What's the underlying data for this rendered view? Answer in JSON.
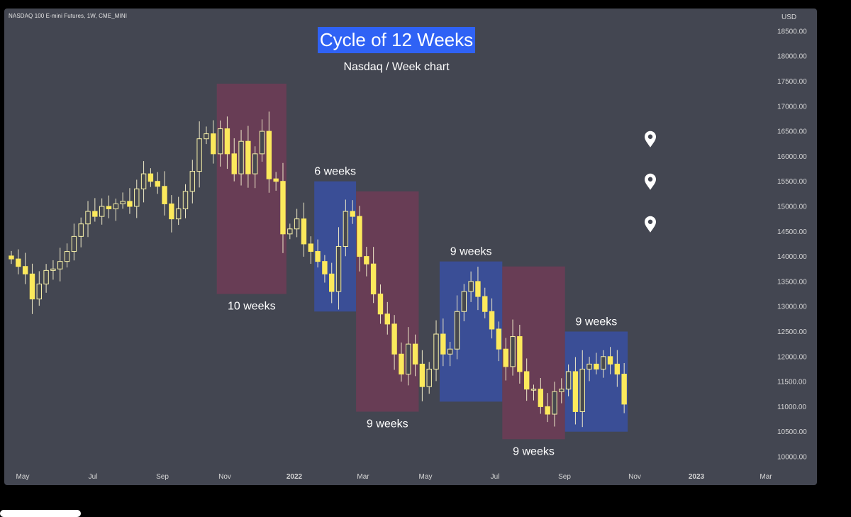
{
  "header": {
    "symbol": "NASDAQ 100 E-mini Futures, 1W, CME_MINI",
    "title": "Cycle of 12 Weeks",
    "subtitle": "Nasdaq / Week chart",
    "currency": "USD"
  },
  "colors": {
    "background": "#434651",
    "candle_body": "#fce95c",
    "candle_outline": "#f8f2a8",
    "wick": "#efe9c8",
    "maroon_box": "#6b3d56",
    "blue_box": "#3a4f9c",
    "title_box": "#2f62f5",
    "axis_text": "#d6d6d6"
  },
  "chart_data": {
    "type": "candlestick",
    "timeframe": "1W",
    "y_axis": {
      "position": "right",
      "ticks": [
        "10000.00",
        "10500.00",
        "11000.00",
        "11500.00",
        "12000.00",
        "12500.00",
        "13000.00",
        "13500.00",
        "14000.00",
        "14500.00",
        "15000.00",
        "15500.00",
        "16000.00",
        "16500.00",
        "17000.00",
        "17500.00",
        "18000.00",
        "18500.00"
      ],
      "ylim": [
        9850,
        18600
      ]
    },
    "x_axis": {
      "ticks": [
        "May",
        "Jul",
        "Sep",
        "Nov",
        "2022",
        "Mar",
        "May",
        "Jul",
        "Sep",
        "Nov",
        "2023",
        "Mar"
      ],
      "bold_ticks": [
        "2022",
        "2023"
      ]
    },
    "weekly_closes": [
      13950,
      13800,
      13650,
      13150,
      13450,
      13720,
      13750,
      13900,
      14100,
      14400,
      14650,
      14900,
      14800,
      15000,
      14950,
      15050,
      15100,
      15000,
      15350,
      15650,
      15500,
      15400,
      15050,
      14750,
      14950,
      15300,
      15700,
      16350,
      16450,
      16050,
      16550,
      16050,
      15650,
      16300,
      15650,
      16050,
      16500,
      15550,
      15500,
      14450,
      14550,
      14750,
      14250,
      14100,
      13900,
      13650,
      13300,
      14200,
      14900,
      14800,
      14000,
      13850,
      13250,
      12850,
      12650,
      12050,
      11650,
      12250,
      11850,
      11400,
      11750,
      12450,
      12050,
      12150,
      12900,
      13300,
      13500,
      13200,
      12900,
      12550,
      12150,
      11800,
      12400,
      11700,
      11350,
      11350,
      11000,
      10850,
      11300,
      11350,
      11700,
      10900,
      11750,
      11850,
      11750,
      12000,
      11850,
      11650,
      11050
    ],
    "cycle_boxes": [
      {
        "label": "10 weeks",
        "color": "maroon",
        "from_week": 30,
        "to_week": 40,
        "low": 13250,
        "high": 17450
      },
      {
        "label": "6 weeks",
        "color": "blue",
        "from_week": 44,
        "to_week": 50,
        "low": 12900,
        "high": 15500
      },
      {
        "label": "9 weeks",
        "color": "maroon",
        "from_week": 50,
        "to_week": 59,
        "low": 10900,
        "high": 15300
      },
      {
        "label": "9 weeks",
        "color": "blue",
        "from_week": 62,
        "to_week": 71,
        "low": 11100,
        "high": 13900
      },
      {
        "label": "9 weeks",
        "color": "maroon",
        "from_week": 71,
        "to_week": 80,
        "low": 10350,
        "high": 13800
      },
      {
        "label": "9 weeks",
        "color": "blue",
        "from_week": 80,
        "to_week": 89,
        "low": 10500,
        "high": 12500
      }
    ],
    "map_pins": [
      16250,
      15400,
      14550
    ]
  }
}
